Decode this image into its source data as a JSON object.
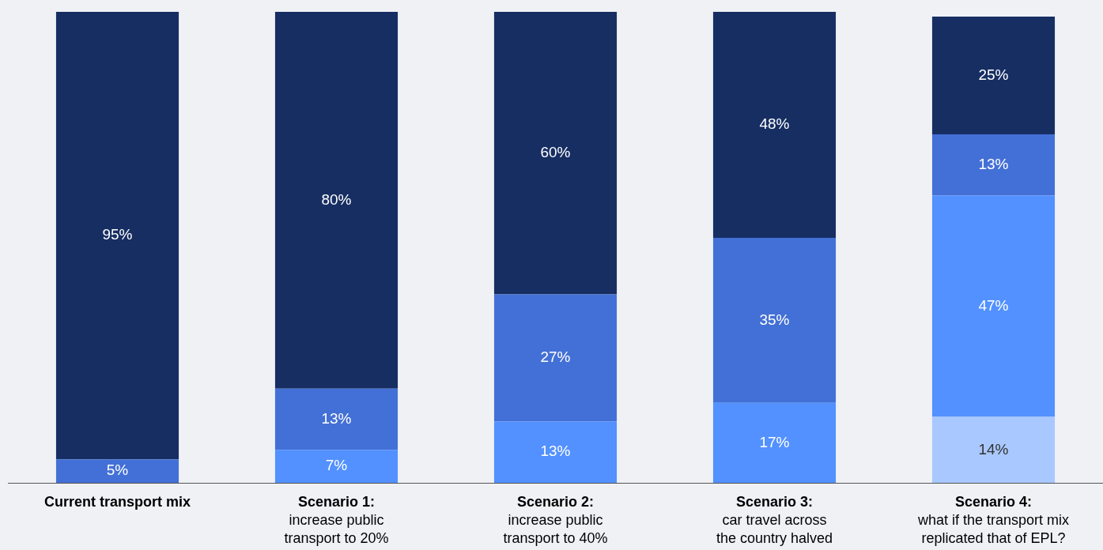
{
  "chart_data": {
    "type": "bar",
    "stacked": true,
    "categories": [
      "Current transport mix",
      "Scenario 1:\nincrease public\ntransport to 20%",
      "Scenario 2:\nincrease public\ntransport to 40%",
      "Scenario 3:\ncar travel across\nthe country halved",
      "Scenario 4:\nwhat if the transport mix\nreplicated that of EPL?"
    ],
    "series": [
      {
        "color": "#a9c8ff",
        "values": [
          null,
          null,
          null,
          null,
          14
        ],
        "value_labels": [
          null,
          null,
          null,
          null,
          "14%"
        ]
      },
      {
        "color": "#5291ff",
        "values": [
          null,
          7,
          13,
          17,
          47
        ],
        "value_labels": [
          null,
          "7%",
          "13%",
          "17%",
          "47%"
        ]
      },
      {
        "color": "#4370d6",
        "values": [
          5,
          13,
          27,
          35,
          13
        ],
        "value_labels": [
          "5%",
          "13%",
          "27%",
          "35%",
          "13%"
        ]
      },
      {
        "color": "#172e63",
        "values": [
          95,
          80,
          60,
          48,
          25
        ],
        "value_labels": [
          "95%",
          "80%",
          "60%",
          "48%",
          "25%"
        ]
      }
    ],
    "ylim": [
      0,
      100
    ],
    "tick_labels": "x",
    "grid": false,
    "legend": false
  }
}
